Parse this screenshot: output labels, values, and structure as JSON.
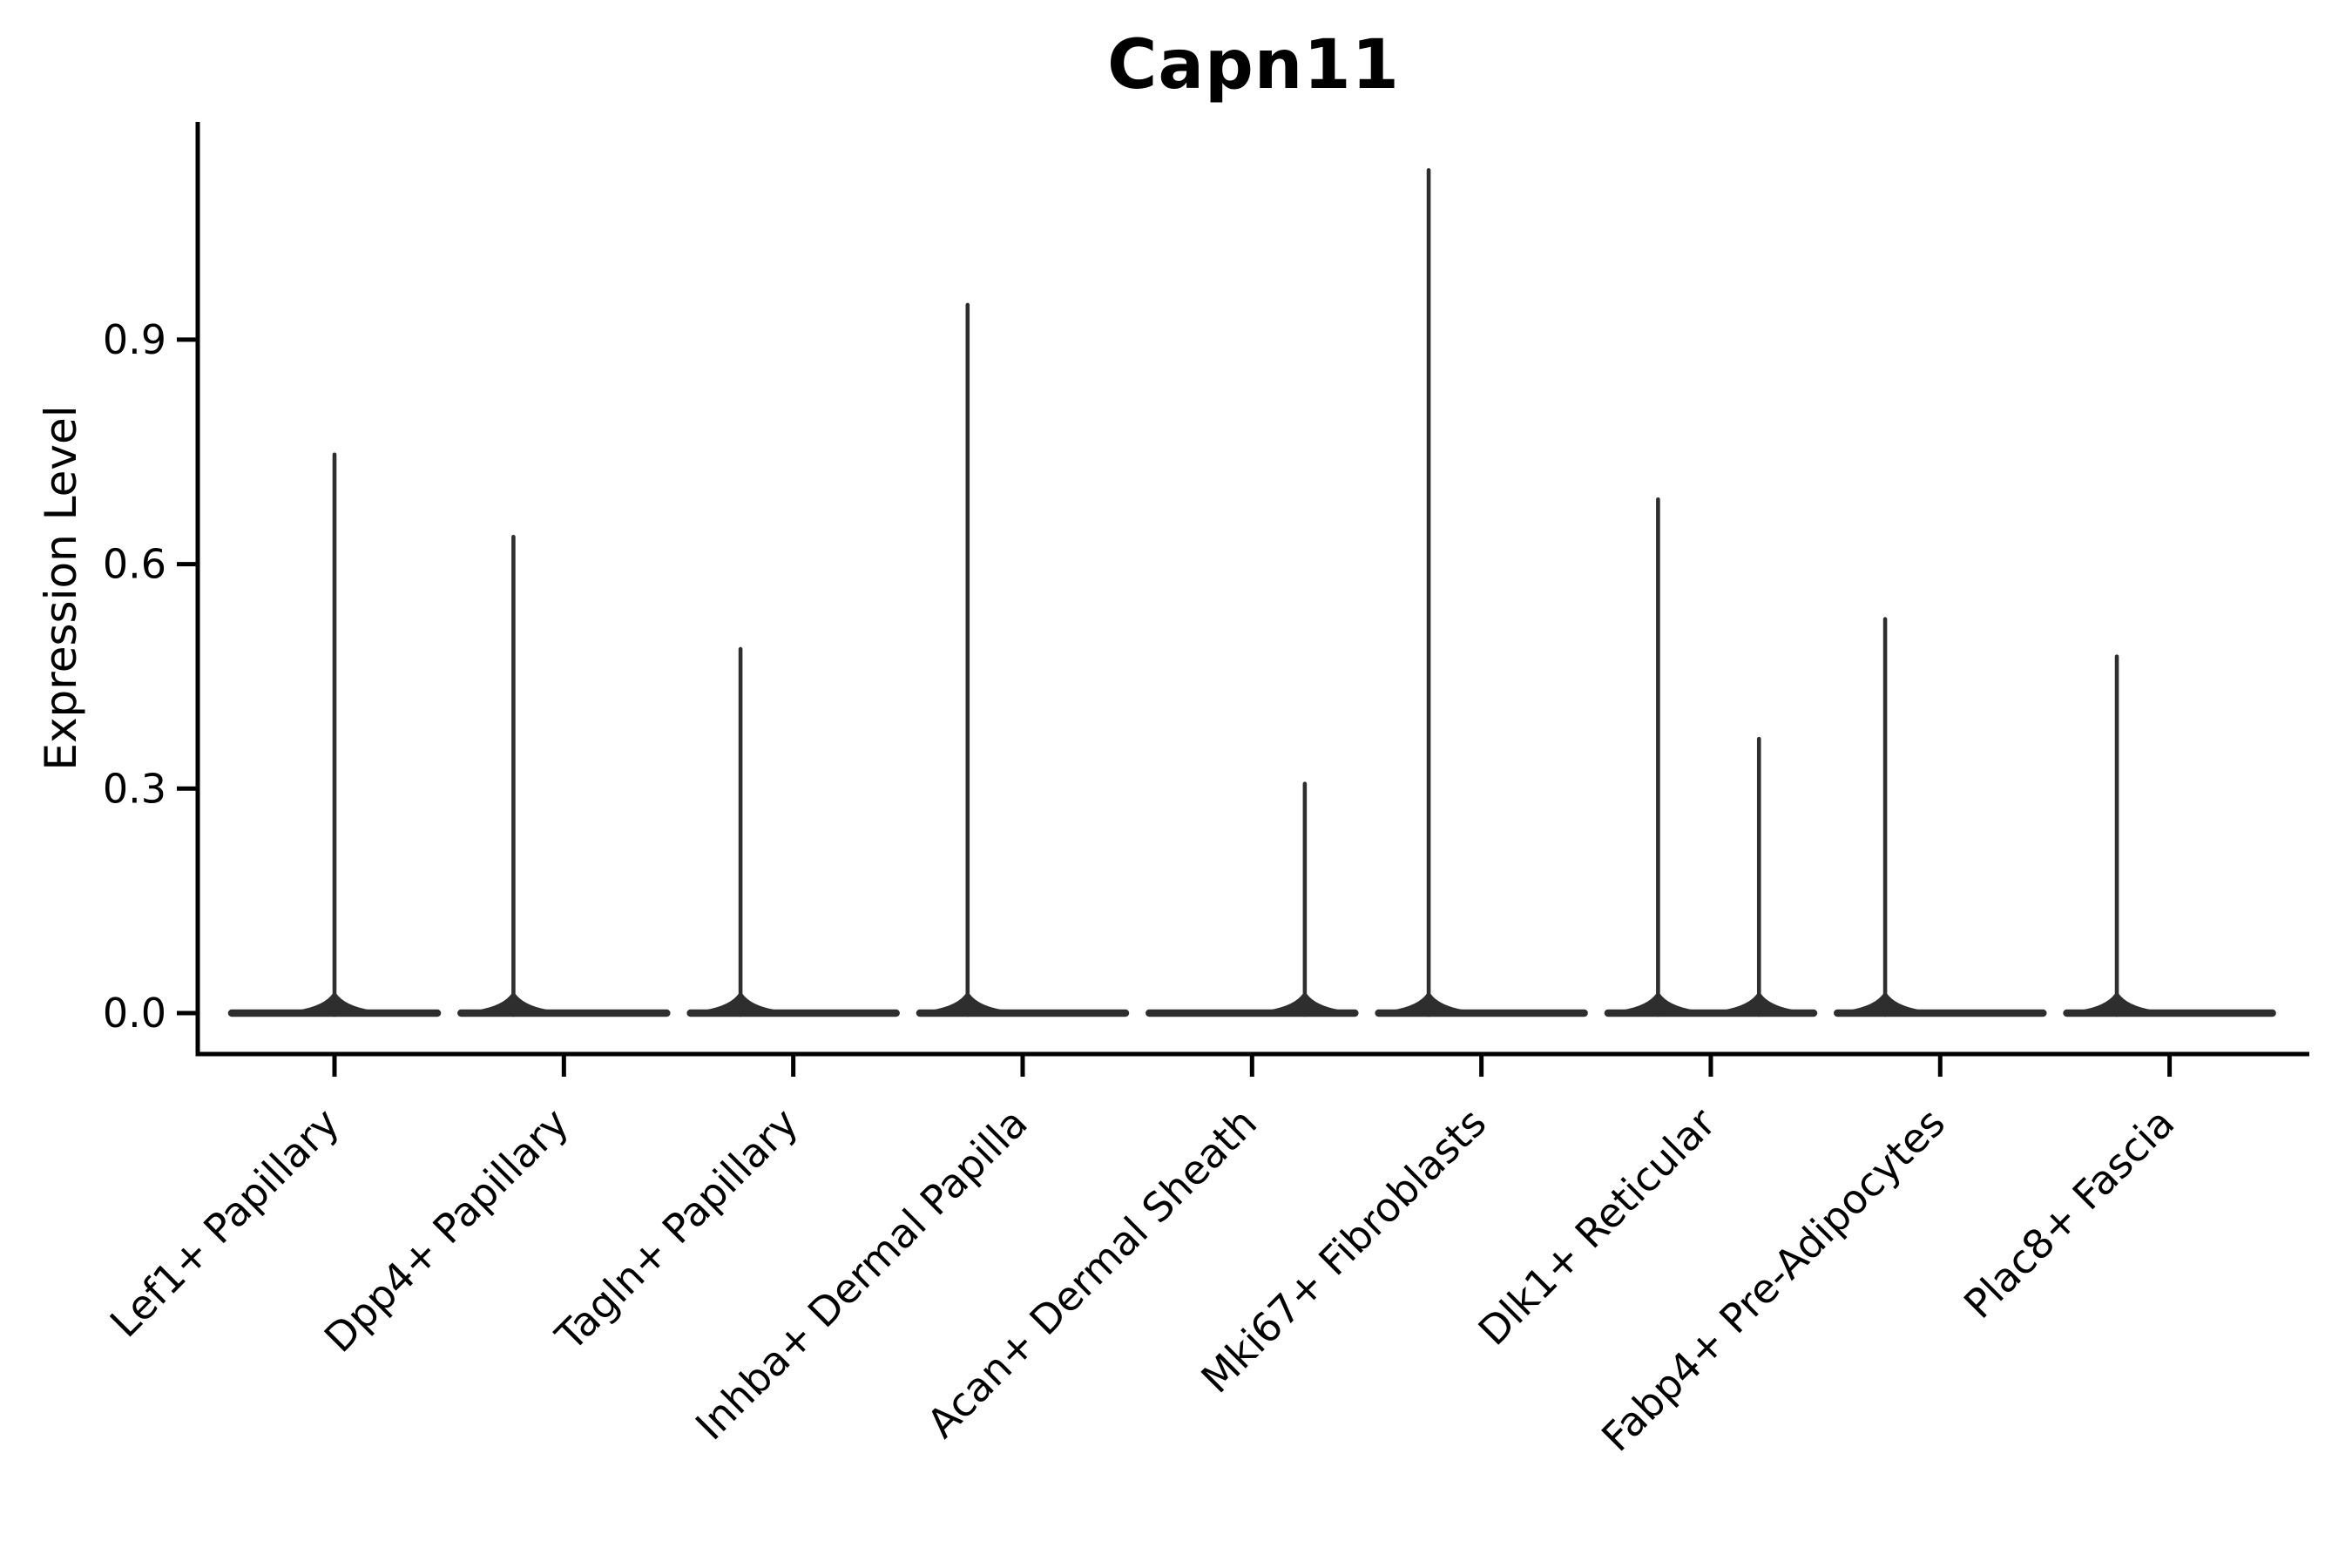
{
  "chart_data": {
    "type": "violin",
    "title": "Capn11",
    "ylabel": "Expression Level",
    "xlabel": "",
    "yticks": [
      "0.0",
      "0.3",
      "0.6",
      "0.9"
    ],
    "ylim": [
      0,
      1.19
    ],
    "grid": false,
    "legend_position": "none",
    "categories": [
      "Lef1+ Papillary",
      "Dpp4+ Papillary",
      "Tagln+ Papillary",
      "Inhba+ Dermal Papilla",
      "Acan+ Dermal Sheath",
      "Mki67+ Fibroblasts",
      "Dlk1+ Reticular",
      "Fabp4+ Pre-Adipocytes",
      "Plac8+ Fascia"
    ],
    "violins": [
      {
        "category": "Lef1+ Papillary",
        "max": 0.75,
        "spikes": [
          {
            "dx": 0.0,
            "value": 0.75
          }
        ]
      },
      {
        "category": "Dpp4+ Papillary",
        "max": 0.64,
        "spikes": [
          {
            "dx": -0.22,
            "value": 0.64
          }
        ]
      },
      {
        "category": "Tagln+ Papillary",
        "max": 0.49,
        "spikes": [
          {
            "dx": -0.23,
            "value": 0.49
          }
        ]
      },
      {
        "category": "Inhba+ Dermal Papilla",
        "max": 0.95,
        "spikes": [
          {
            "dx": -0.24,
            "value": 0.95
          }
        ]
      },
      {
        "category": "Acan+ Dermal Sheath",
        "max": 0.31,
        "spikes": [
          {
            "dx": 0.23,
            "value": 0.31
          }
        ]
      },
      {
        "category": "Mki67+ Fibroblasts",
        "max": 1.13,
        "spikes": [
          {
            "dx": -0.23,
            "value": 1.13
          }
        ]
      },
      {
        "category": "Dlk1+ Reticular",
        "max": 0.69,
        "spikes": [
          {
            "dx": -0.23,
            "value": 0.69
          },
          {
            "dx": 0.21,
            "value": 0.37
          }
        ]
      },
      {
        "category": "Fabp4+ Pre-Adipocytes",
        "max": 0.53,
        "spikes": [
          {
            "dx": -0.24,
            "value": 0.53
          }
        ]
      },
      {
        "category": "Plac8+ Fascia",
        "max": 0.48,
        "spikes": [
          {
            "dx": -0.23,
            "value": 0.48
          }
        ]
      }
    ],
    "colors": {
      "violin": "#2e2e2e",
      "axis": "#000000",
      "text": "#000000",
      "background": "#ffffff"
    }
  }
}
